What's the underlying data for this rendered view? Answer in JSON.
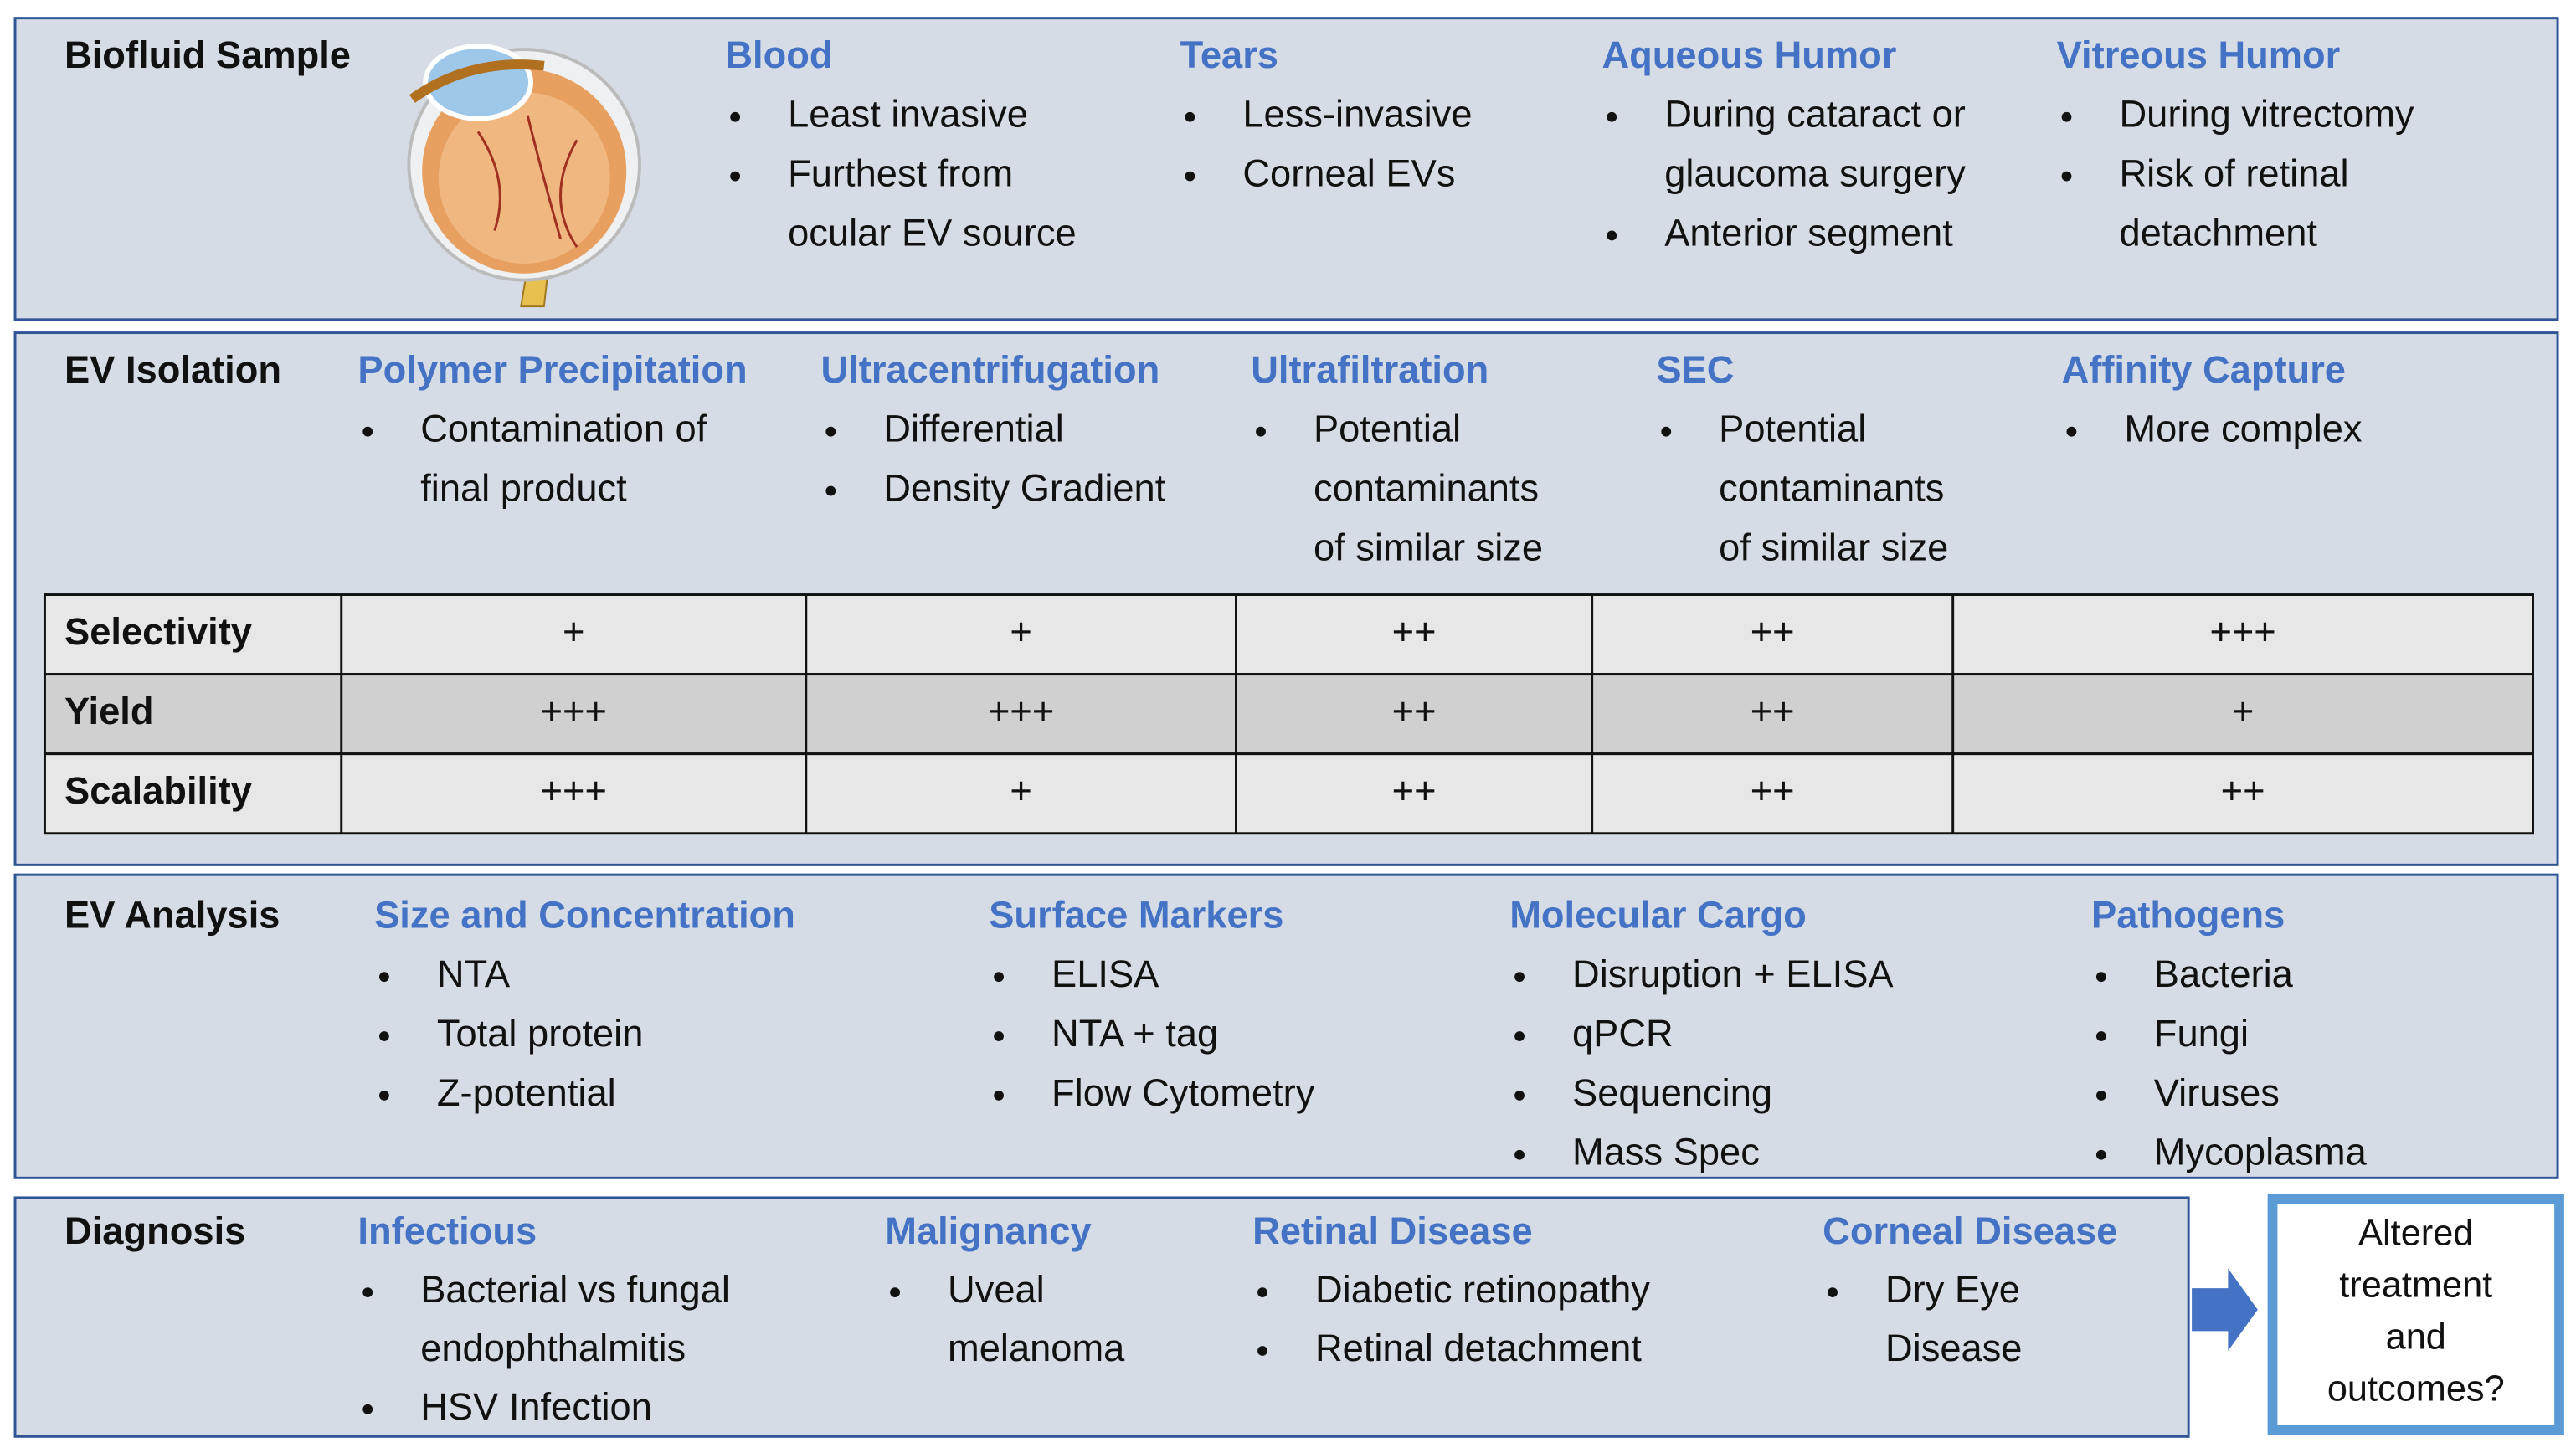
{
  "biofluid": {
    "title": "Biofluid Sample",
    "columns": [
      {
        "heading": "Blood",
        "items": [
          [
            "Least invasive"
          ],
          [
            "Furthest from",
            "ocular EV source"
          ]
        ]
      },
      {
        "heading": "Tears",
        "items": [
          [
            "Less-invasive"
          ],
          [
            "Corneal EVs"
          ]
        ]
      },
      {
        "heading": "Aqueous Humor",
        "items": [
          [
            "During cataract or",
            "glaucoma surgery"
          ],
          [
            "Anterior segment"
          ]
        ]
      },
      {
        "heading": "Vitreous Humor",
        "items": [
          [
            "During vitrectomy"
          ],
          [
            "Risk of retinal",
            "detachment"
          ]
        ]
      }
    ]
  },
  "isolation": {
    "title": "EV Isolation",
    "columns": [
      {
        "heading": "Polymer Precipitation",
        "items": [
          [
            "Contamination of",
            "final product"
          ]
        ]
      },
      {
        "heading": "Ultracentrifugation",
        "items": [
          [
            "Differential"
          ],
          [
            "Density Gradient"
          ]
        ]
      },
      {
        "heading": "Ultrafiltration",
        "items": [
          [
            "Potential",
            "contaminants",
            "of similar size"
          ]
        ]
      },
      {
        "heading": "SEC",
        "items": [
          [
            "Potential",
            "contaminants",
            "of similar size"
          ]
        ]
      },
      {
        "heading": "Affinity Capture",
        "items": [
          [
            "More complex"
          ]
        ]
      }
    ]
  },
  "comparison": {
    "rows": [
      {
        "label": "Selectivity",
        "values": [
          "+",
          "+",
          "++",
          "++",
          "+++"
        ]
      },
      {
        "label": "Yield",
        "values": [
          "+++",
          "+++",
          "++",
          "++",
          "+"
        ]
      },
      {
        "label": "Scalability",
        "values": [
          "+++",
          "+",
          "++",
          "++",
          "++"
        ]
      }
    ]
  },
  "analysis": {
    "title": "EV Analysis",
    "columns": [
      {
        "heading": "Size and Concentration",
        "items": [
          [
            "NTA"
          ],
          [
            "Total protein"
          ],
          [
            "Z-potential"
          ]
        ]
      },
      {
        "heading": "Surface Markers",
        "items": [
          [
            "ELISA"
          ],
          [
            "NTA + tag"
          ],
          [
            "Flow Cytometry"
          ]
        ]
      },
      {
        "heading": "Molecular Cargo",
        "items": [
          [
            "Disruption + ELISA"
          ],
          [
            "qPCR"
          ],
          [
            "Sequencing"
          ],
          [
            "Mass Spec"
          ]
        ]
      },
      {
        "heading": "Pathogens",
        "items": [
          [
            "Bacteria"
          ],
          [
            "Fungi"
          ],
          [
            "Viruses"
          ],
          [
            "Mycoplasma"
          ]
        ]
      }
    ]
  },
  "diagnosis": {
    "title": "Diagnosis",
    "columns": [
      {
        "heading": "Infectious",
        "items": [
          [
            "Bacterial vs fungal",
            "endophthalmitis"
          ],
          [
            "HSV Infection"
          ]
        ]
      },
      {
        "heading": "Malignancy",
        "items": [
          [
            "Uveal",
            "melanoma"
          ]
        ]
      },
      {
        "heading": "Retinal Disease",
        "items": [
          [
            "Diabetic retinopathy"
          ],
          [
            "Retinal detachment"
          ]
        ]
      },
      {
        "heading": "Corneal Disease",
        "items": [
          [
            "Dry Eye",
            "Disease"
          ]
        ]
      }
    ]
  },
  "outcome": {
    "lines": [
      "Altered",
      "treatment",
      "and",
      "outcomes?"
    ]
  }
}
